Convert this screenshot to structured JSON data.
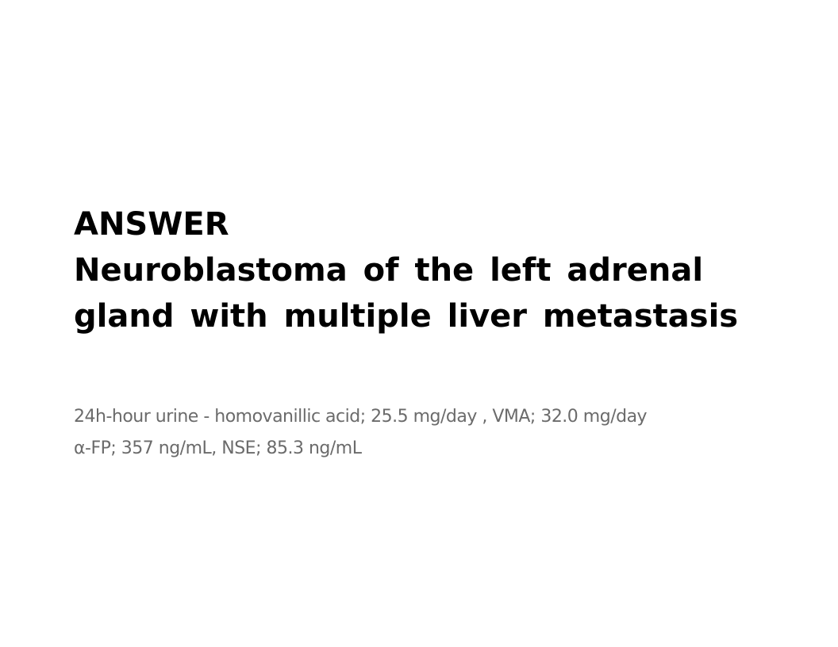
{
  "title": {
    "lines": [
      "ANSWER",
      "Neuroblastoma of the left adrenal",
      "gland with multiple liver metastasis"
    ]
  },
  "details": {
    "lines": [
      "24h-hour urine - homovanillic acid; 25.5 mg/day , VMA; 32.0 mg/day",
      "α-FP; 357 ng/mL, NSE; 85.3 ng/mL"
    ]
  }
}
